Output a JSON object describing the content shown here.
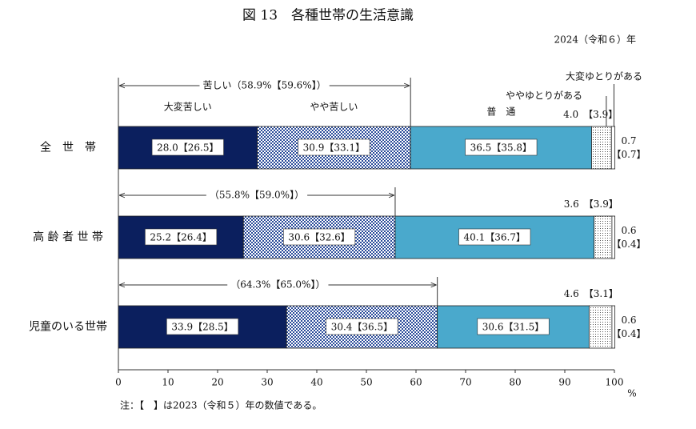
{
  "chart_data": {
    "type": "bar",
    "orientation": "horizontal",
    "stacked": true,
    "title": "図 13　各種世帯の生活意識",
    "subtitle": "2024（令和６）年",
    "note": "注：【　】は2023（令和５）年の数値である。",
    "x_unit": "%",
    "categories": [
      "全　世　帯",
      "高 齢 者 世 帯",
      "児童のいる世帯"
    ],
    "series": [
      {
        "name": "大変苦しい",
        "color": "#0b1f5e",
        "pattern": "solid",
        "values": [
          28,
          25.2,
          33.9
        ],
        "value_labels": [
          "28.0",
          "25.2",
          "33.9"
        ],
        "prev_labels": [
          "【26.5】",
          "【26.4】",
          "【28.5】"
        ]
      },
      {
        "name": "やや苦しい",
        "color": "#2b4c9a",
        "pattern": "checker",
        "values": [
          30.9,
          30.6,
          30.4
        ],
        "prev_labels": [
          "【33.1】",
          "【32.6】",
          "【36.5】"
        ]
      },
      {
        "name": "普　通",
        "color": "#4aa9cc",
        "pattern": "solid",
        "values": [
          36.5,
          40.1,
          30.6
        ],
        "prev_labels": [
          "【35.8】",
          "【36.7】",
          "【31.5】"
        ]
      },
      {
        "name": "ややゆとりがある",
        "color": "#555555",
        "pattern": "dots",
        "values": [
          4,
          3.6,
          4.6
        ],
        "value_labels": [
          "4.0",
          "3.6",
          "4.6"
        ],
        "prev_labels": [
          "【3.9】",
          "【3.9】",
          "【3.1】"
        ]
      },
      {
        "name": "大変ゆとりがある",
        "color": "#ffffff",
        "pattern": "solid",
        "values": [
          0.7,
          0.6,
          0.6
        ],
        "prev_labels": [
          "【0.7】",
          "【0.4】",
          "【0.4】"
        ]
      }
    ],
    "brackets": [
      {
        "label": "苦しい（58.9%【59.6%】）",
        "value": 58.9
      },
      {
        "label": "（55.8%【59.0%】）",
        "value": 55.8
      },
      {
        "label": "（64.3%【65.0%】）",
        "value": 64.3
      }
    ],
    "xlim": [
      0,
      100
    ],
    "xticks": [
      0,
      10,
      20,
      30,
      40,
      50,
      60,
      70,
      80,
      90,
      100
    ]
  }
}
